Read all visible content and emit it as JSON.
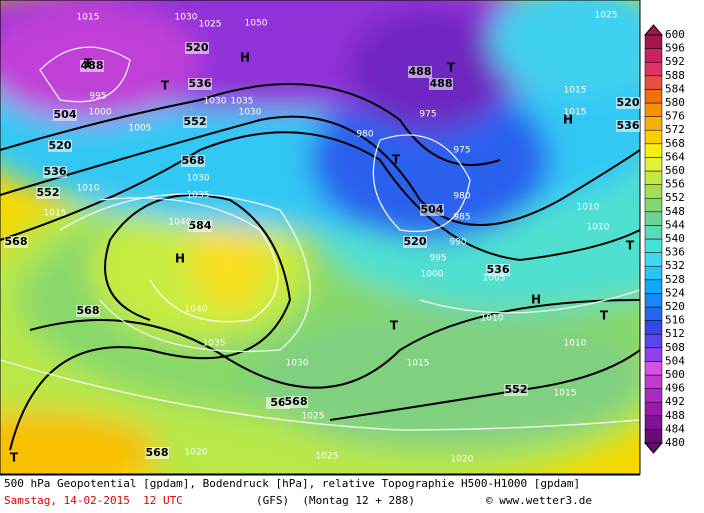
{
  "caption": {
    "line1": "500 hPa Geopotential [gpdam], Bodendruck [hPa], relative Topographie H500-H1000 [gpdam]",
    "date": "Samstag, 14-02-2015  12 UTC",
    "model": "(GFS)  (Montag 12 + 288)",
    "credit": "© www.wetter3.de"
  },
  "colorbar": {
    "ticks": [
      480,
      484,
      488,
      492,
      496,
      500,
      504,
      508,
      512,
      516,
      520,
      524,
      528,
      532,
      536,
      540,
      544,
      548,
      552,
      556,
      560,
      564,
      568,
      572,
      576,
      580,
      584,
      588,
      592,
      596,
      600
    ],
    "colors": [
      "#6a0a78",
      "#80129a",
      "#9a1aae",
      "#b028c4",
      "#c438d4",
      "#d850e4",
      "#9040ec",
      "#5a48ee",
      "#3448e8",
      "#2468f0",
      "#1888f6",
      "#10a8f8",
      "#28c4f6",
      "#40d8ee",
      "#48e2d8",
      "#58dcb8",
      "#6cd494",
      "#84d670",
      "#a0e052",
      "#c0ea40",
      "#e0f23c",
      "#f8ee10",
      "#f8d000",
      "#f8b000",
      "#f89000",
      "#f07010",
      "#e85040",
      "#e03464",
      "#cc2060",
      "#a81450"
    ]
  },
  "map_labels": [
    "488",
    "504",
    "520",
    "536",
    "552",
    "568",
    "568",
    "568",
    "520",
    "536",
    "552",
    "568",
    "584",
    "488",
    "488",
    "504",
    "520",
    "536",
    "552",
    "56",
    "568",
    "520",
    "536",
    "H",
    "H",
    "H",
    "H",
    "T",
    "T",
    "T",
    "T",
    "T",
    "T",
    "T",
    "T",
    "1015",
    "1030",
    "1025",
    "1050",
    "1035",
    "1030",
    "1040",
    "1040",
    "1035",
    "1030",
    "1025",
    "1025",
    "1020",
    "1020",
    "1015",
    "1015",
    "1010",
    "1010",
    "1010",
    "1010",
    "1015",
    "1015",
    "1025",
    "990",
    "985",
    "980",
    "975",
    "975",
    "980",
    "995",
    "1000",
    "1005",
    "1010",
    "1015",
    "1005",
    "1000",
    "995",
    "1030",
    "1035",
    "1030"
  ]
}
